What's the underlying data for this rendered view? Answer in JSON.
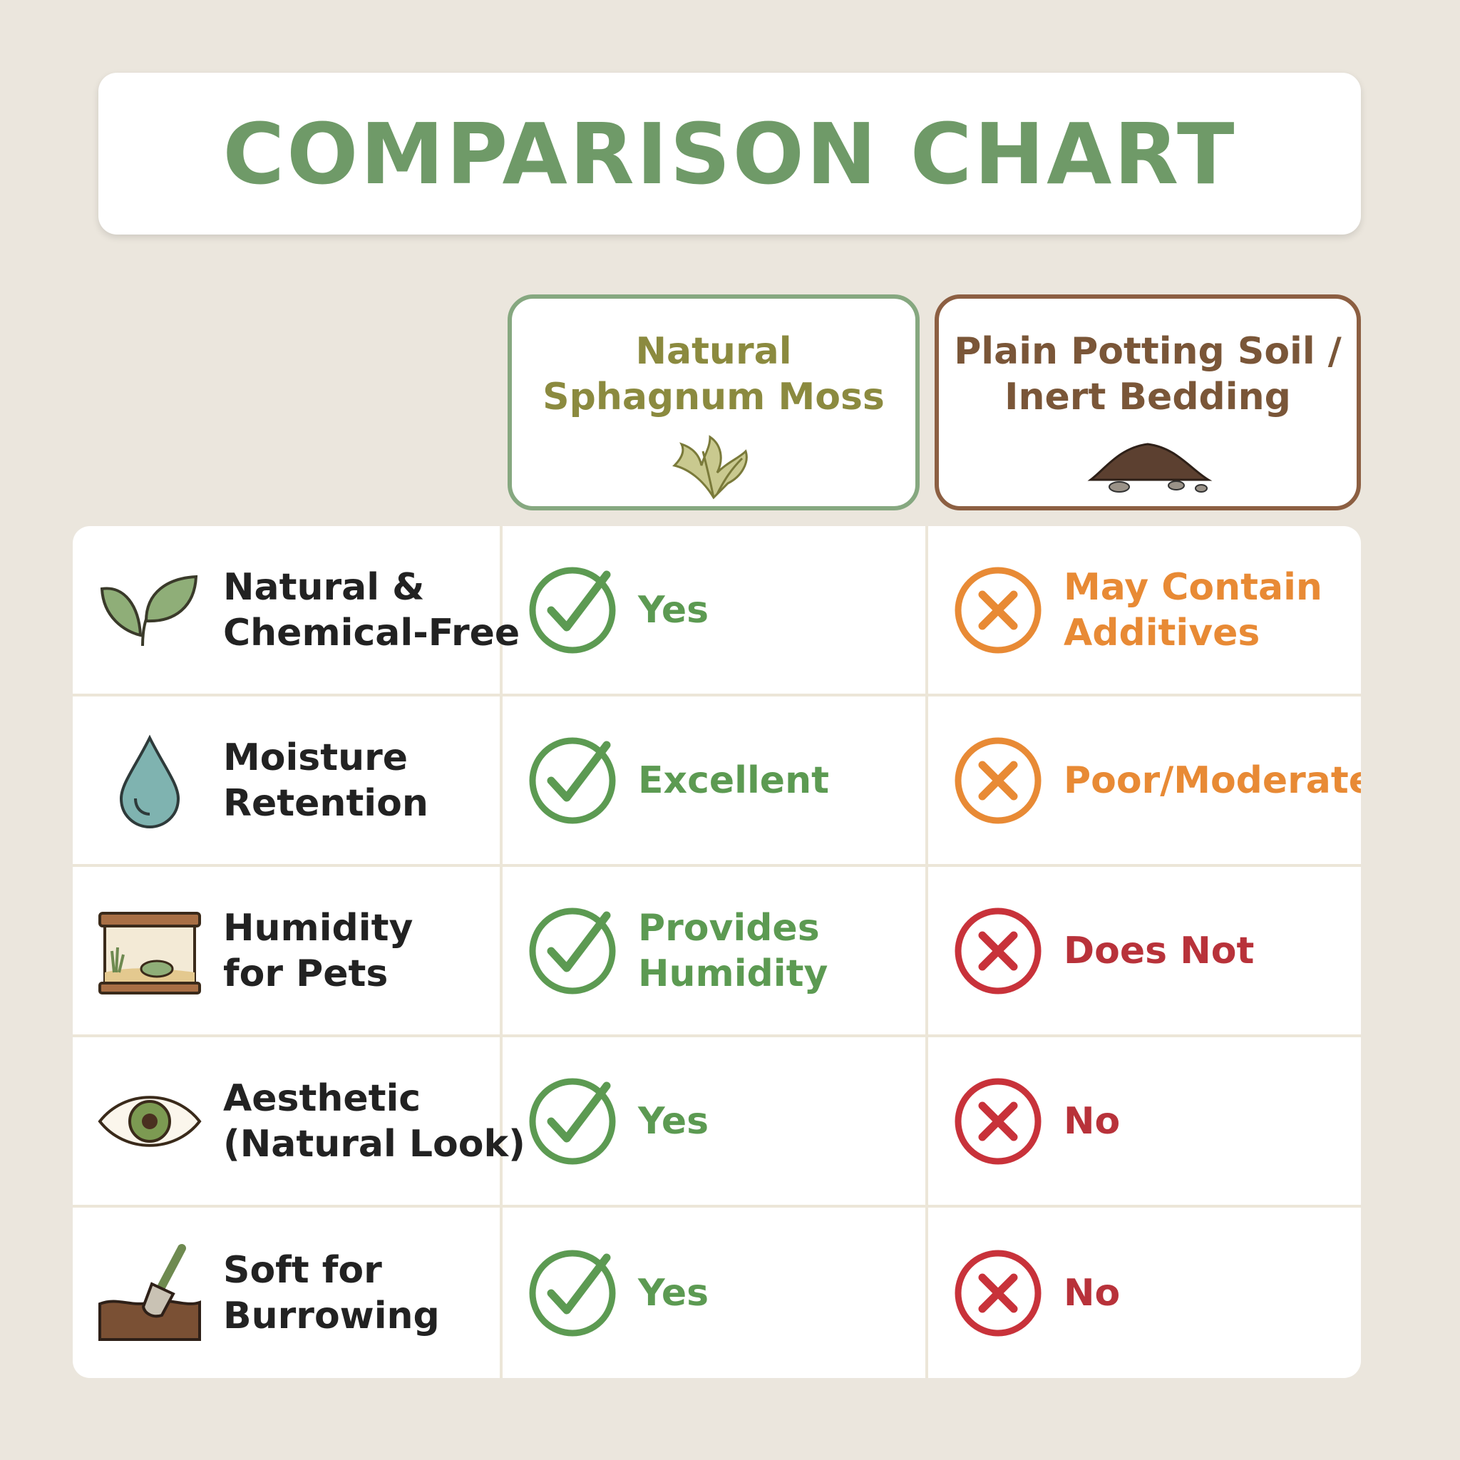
{
  "header": {
    "title": "COMPARISON CHART"
  },
  "columns": [
    {
      "lines": [
        "Natural",
        "Sphagnum Moss"
      ]
    },
    {
      "lines": [
        "Plain Potting Soil /",
        "Inert Bedding"
      ]
    }
  ],
  "rows": [
    {
      "feature": [
        "Natural &",
        "Chemical-Free"
      ],
      "moss": [
        "Yes"
      ],
      "soil": [
        "May Contain",
        "Additives"
      ]
    },
    {
      "feature": [
        "Moisture",
        "Retention"
      ],
      "moss": [
        "Excellent"
      ],
      "soil": [
        "Poor/Moderate"
      ]
    },
    {
      "feature": [
        "Humidity",
        "for Pets"
      ],
      "moss": [
        "Provides",
        "Humidity"
      ],
      "soil": [
        "Does Not"
      ]
    },
    {
      "feature": [
        "Aesthetic",
        "(Natural Look)"
      ],
      "moss": [
        "Yes"
      ],
      "soil": [
        "No"
      ]
    },
    {
      "feature": [
        "Soft for",
        "Burrowing"
      ],
      "moss": [
        "Yes"
      ],
      "soil": [
        "No"
      ]
    }
  ]
}
